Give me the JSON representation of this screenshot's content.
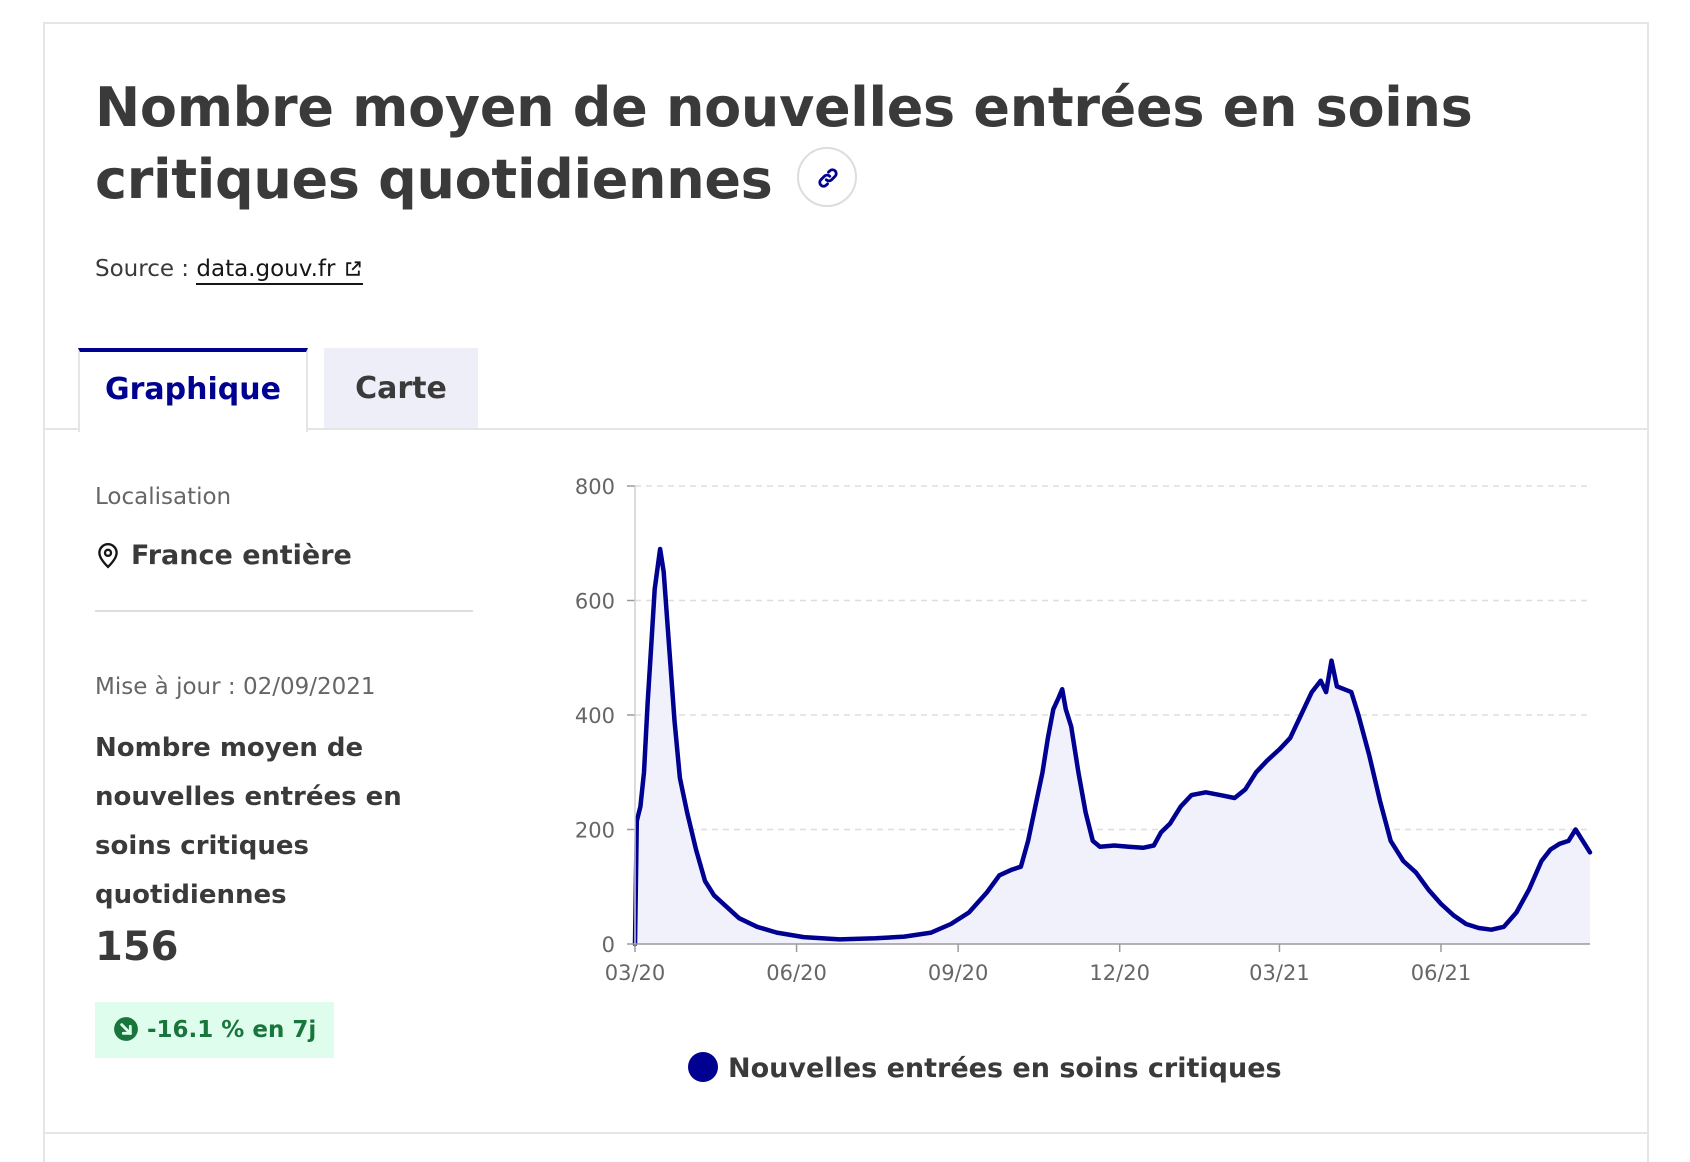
{
  "card": {
    "title": "Nombre moyen de nouvelles entrées en soins critiques quotidiennes",
    "source_label": "Source :",
    "source_link": "data.gouv.fr"
  },
  "tabs": [
    {
      "label": "Graphique",
      "active": true
    },
    {
      "label": "Carte",
      "active": false
    }
  ],
  "sidebar": {
    "location_label": "Localisation",
    "location_value": "France entière",
    "updated": "Mise à jour : 02/09/2021",
    "indicator_name": "Nombre moyen de nouvelles entrées en soins critiques quotidiennes",
    "indicator_value": "156",
    "trend": "-16.1 % en 7j"
  },
  "colors": {
    "accent": "#000091",
    "trend_bg": "#dffdec",
    "trend_fg": "#18753c",
    "area_fill": "#f1f1fc"
  },
  "chart_data": {
    "type": "area",
    "title": "",
    "xlabel": "",
    "ylabel": "",
    "ylim": [
      0,
      800
    ],
    "yticks": [
      0,
      200,
      400,
      600,
      800
    ],
    "xlim": [
      "2020-03-18",
      "2021-09-01"
    ],
    "xticks": [
      {
        "date": "2020-03-18",
        "label": "03/20"
      },
      {
        "date": "2020-06-16",
        "label": "06/20"
      },
      {
        "date": "2020-09-14",
        "label": "09/20"
      },
      {
        "date": "2020-12-13",
        "label": "12/20"
      },
      {
        "date": "2021-03-12",
        "label": "03/21"
      },
      {
        "date": "2021-06-10",
        "label": "06/21"
      }
    ],
    "grid": "horizontal-dashed",
    "legend": "bottom",
    "series": [
      {
        "name": "Nouvelles entrées en soins critiques",
        "color": "#000091",
        "points": [
          [
            "2020-03-18",
            0
          ],
          [
            "2020-03-19",
            215
          ],
          [
            "2020-03-21",
            240
          ],
          [
            "2020-03-23",
            300
          ],
          [
            "2020-03-25",
            420
          ],
          [
            "2020-03-27",
            520
          ],
          [
            "2020-03-29",
            620
          ],
          [
            "2020-04-01",
            690
          ],
          [
            "2020-04-03",
            650
          ],
          [
            "2020-04-06",
            520
          ],
          [
            "2020-04-09",
            390
          ],
          [
            "2020-04-12",
            290
          ],
          [
            "2020-04-16",
            230
          ],
          [
            "2020-04-21",
            165
          ],
          [
            "2020-04-26",
            110
          ],
          [
            "2020-05-01",
            85
          ],
          [
            "2020-05-08",
            65
          ],
          [
            "2020-05-15",
            45
          ],
          [
            "2020-05-25",
            30
          ],
          [
            "2020-06-05",
            20
          ],
          [
            "2020-06-20",
            12
          ],
          [
            "2020-07-10",
            8
          ],
          [
            "2020-07-30",
            10
          ],
          [
            "2020-08-15",
            13
          ],
          [
            "2020-08-30",
            20
          ],
          [
            "2020-09-10",
            35
          ],
          [
            "2020-09-20",
            55
          ],
          [
            "2020-09-30",
            90
          ],
          [
            "2020-10-07",
            120
          ],
          [
            "2020-10-14",
            130
          ],
          [
            "2020-10-19",
            135
          ],
          [
            "2020-10-23",
            180
          ],
          [
            "2020-10-27",
            240
          ],
          [
            "2020-10-31",
            300
          ],
          [
            "2020-11-03",
            360
          ],
          [
            "2020-11-06",
            410
          ],
          [
            "2020-11-09",
            430
          ],
          [
            "2020-11-11",
            445
          ],
          [
            "2020-11-13",
            410
          ],
          [
            "2020-11-16",
            380
          ],
          [
            "2020-11-20",
            300
          ],
          [
            "2020-11-24",
            230
          ],
          [
            "2020-11-28",
            180
          ],
          [
            "2020-12-02",
            170
          ],
          [
            "2020-12-10",
            172
          ],
          [
            "2020-12-18",
            170
          ],
          [
            "2020-12-26",
            168
          ],
          [
            "2021-01-01",
            172
          ],
          [
            "2021-01-05",
            195
          ],
          [
            "2021-01-10",
            210
          ],
          [
            "2021-01-16",
            240
          ],
          [
            "2021-01-22",
            260
          ],
          [
            "2021-01-30",
            265
          ],
          [
            "2021-02-07",
            260
          ],
          [
            "2021-02-15",
            255
          ],
          [
            "2021-02-21",
            270
          ],
          [
            "2021-02-27",
            300
          ],
          [
            "2021-03-05",
            320
          ],
          [
            "2021-03-12",
            340
          ],
          [
            "2021-03-18",
            360
          ],
          [
            "2021-03-24",
            400
          ],
          [
            "2021-03-30",
            440
          ],
          [
            "2021-04-04",
            460
          ],
          [
            "2021-04-07",
            440
          ],
          [
            "2021-04-10",
            495
          ],
          [
            "2021-04-13",
            450
          ],
          [
            "2021-04-17",
            445
          ],
          [
            "2021-04-21",
            440
          ],
          [
            "2021-04-25",
            400
          ],
          [
            "2021-05-01",
            330
          ],
          [
            "2021-05-07",
            250
          ],
          [
            "2021-05-13",
            180
          ],
          [
            "2021-05-20",
            145
          ],
          [
            "2021-05-27",
            125
          ],
          [
            "2021-06-03",
            95
          ],
          [
            "2021-06-10",
            70
          ],
          [
            "2021-06-17",
            50
          ],
          [
            "2021-06-24",
            35
          ],
          [
            "2021-07-01",
            28
          ],
          [
            "2021-07-08",
            25
          ],
          [
            "2021-07-15",
            30
          ],
          [
            "2021-07-22",
            55
          ],
          [
            "2021-07-29",
            95
          ],
          [
            "2021-08-05",
            145
          ],
          [
            "2021-08-10",
            165
          ],
          [
            "2021-08-15",
            175
          ],
          [
            "2021-08-20",
            180
          ],
          [
            "2021-08-24",
            200
          ],
          [
            "2021-08-28",
            180
          ],
          [
            "2021-09-01",
            160
          ]
        ]
      }
    ]
  }
}
